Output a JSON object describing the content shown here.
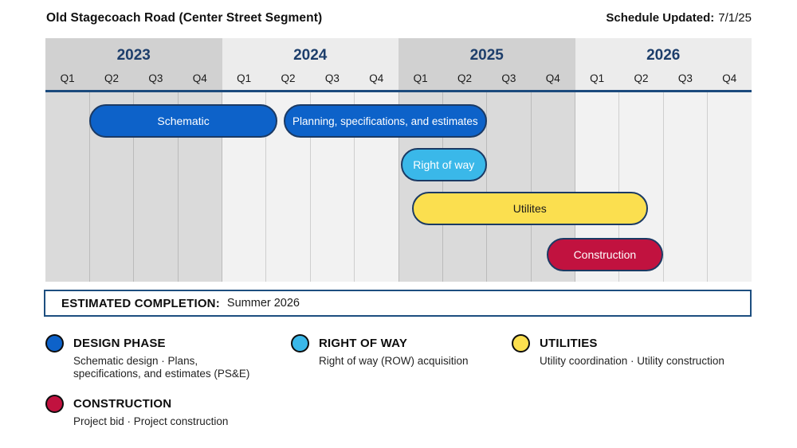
{
  "header": {
    "title": "Old Stagecoach Road (Center Street Segment)",
    "updated_label": "Schedule Updated:",
    "updated_value": "7/1/25"
  },
  "chart_data": {
    "type": "gantt",
    "title": "Old Stagecoach Road (Center Street Segment) project schedule",
    "years": [
      "2023",
      "2024",
      "2025",
      "2026"
    ],
    "quarters_per_year": [
      "Q1",
      "Q2",
      "Q3",
      "Q4"
    ],
    "total_quarters": 16,
    "axis_note": "x measured in quarters from start of Q1 2023 (0) to end of Q4 2026 (16)",
    "bars": [
      {
        "label": "Schematic",
        "row": 0,
        "start_q": 1.0,
        "end_q": 5.25,
        "color_key": "design"
      },
      {
        "label": "Planning, specifications, and estimates",
        "row": 0,
        "start_q": 5.4,
        "end_q": 10.0,
        "color_key": "design"
      },
      {
        "label": "Right of way",
        "row": 1,
        "start_q": 8.05,
        "end_q": 10.0,
        "color_key": "right_of_way"
      },
      {
        "label": "Utilites",
        "row": 2,
        "start_q": 8.3,
        "end_q": 13.65,
        "color_key": "utilities"
      },
      {
        "label": "Construction",
        "row": 3,
        "start_q": 11.35,
        "end_q": 14.0,
        "color_key": "construction"
      }
    ],
    "colors": {
      "design": "#0d62c9",
      "right_of_way": "#3ab8e9",
      "utilities": "#fbdf4f",
      "construction": "#c1123f",
      "bar_border": "#1b3a64",
      "year_text": "#1d3e6b",
      "rule": "#1b4a7d"
    },
    "bar_text_colors": {
      "design": "#ffffff",
      "right_of_way": "#ffffff",
      "utilities": "#1a1a1a",
      "construction": "#ffffff"
    }
  },
  "completion": {
    "label": "ESTIMATED COMPLETION:",
    "value": "Summer 2026"
  },
  "legend": [
    {
      "title": "DESIGN PHASE",
      "desc": "Schematic design · Plans, specifications, and estimates (PS&E)",
      "color": "#0d62c9"
    },
    {
      "title": "RIGHT OF WAY",
      "desc": "Right of way (ROW) acquisition",
      "color": "#3ab8e9"
    },
    {
      "title": "UTILITIES",
      "desc": "Utility coordination · Utility construction",
      "color": "#fbdf4f"
    },
    {
      "title": "CONSTRUCTION",
      "desc": "Project bid · Project construction",
      "color": "#c1123f"
    }
  ]
}
